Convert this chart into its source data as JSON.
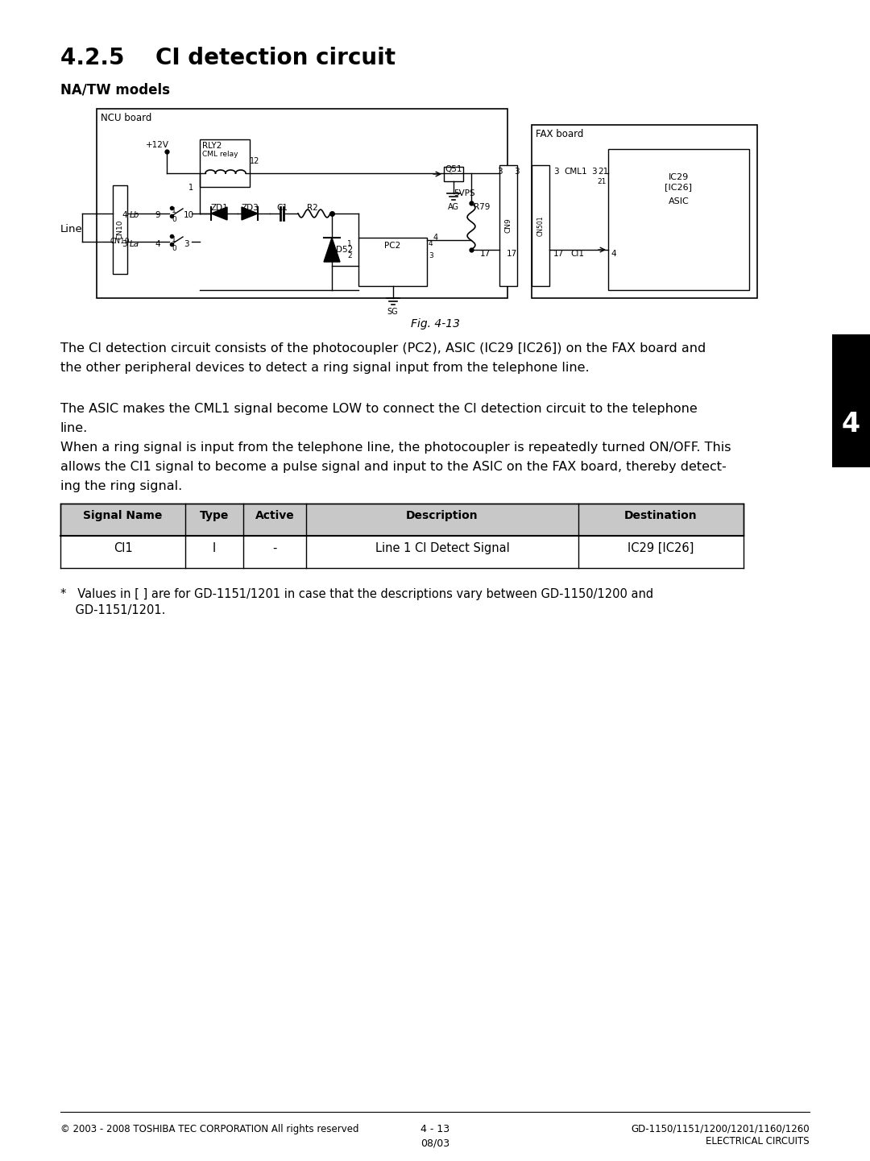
{
  "title_section": "4.2.5    CI detection circuit",
  "subtitle": "NA/TW models",
  "fig_caption": "Fig. 4-13",
  "paragraph1_line1": "The CI detection circuit consists of the photocoupler (PC2), ASIC (IC29 [IC26]) on the FAX board and",
  "paragraph1_line2": "the other peripheral devices to detect a ring signal input from the telephone line.",
  "paragraph2_line1": "The ASIC makes the CML1 signal become LOW to connect the CI detection circuit to the telephone",
  "paragraph2_line2": "line.",
  "paragraph2_line3": "When a ring signal is input from the telephone line, the photocoupler is repeatedly turned ON/OFF. This",
  "paragraph2_line4": "allows the CI1 signal to become a pulse signal and input to the ASIC on the FAX board, thereby detect-",
  "paragraph2_line5": "ing the ring signal.",
  "table_headers": [
    "Signal Name",
    "Type",
    "Active",
    "Description",
    "Destination"
  ],
  "table_row": [
    "CI1",
    "I",
    "-",
    "Line 1 CI Detect Signal",
    "IC29 [IC26]"
  ],
  "footnote_line1": "*   Values in [ ] are for GD-1151/1201 in case that the descriptions vary between GD-1150/1200 and",
  "footnote_line2": "    GD-1151/1201.",
  "footer_left": "© 2003 - 2008 TOSHIBA TEC CORPORATION All rights reserved",
  "footer_page": "4 - 13",
  "footer_date": "08/03",
  "footer_right1": "GD-1150/1151/1200/1201/1160/1260",
  "footer_right2": "ELECTRICAL CIRCUITS",
  "tab_label": "4",
  "bg": "#ffffff",
  "black": "#000000",
  "gray": "#c8c8c8",
  "tab_bg": "#000000",
  "tab_fg": "#ffffff"
}
